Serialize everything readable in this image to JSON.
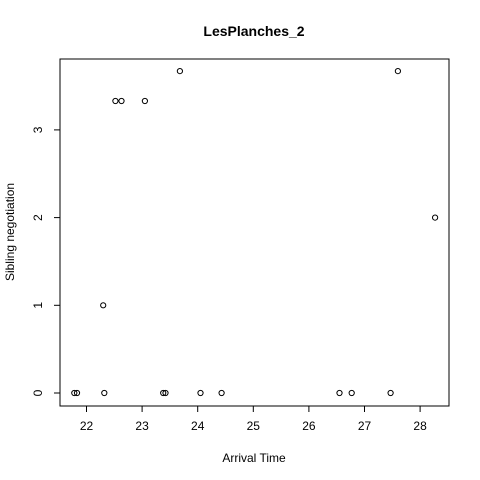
{
  "chart_data": {
    "type": "scatter",
    "title": "LesPlanches_2",
    "xlabel": "Arrival Time",
    "ylabel": "Sibling negotiation",
    "xlim": [
      21.5,
      28.5
    ],
    "ylim": [
      0,
      3.7
    ],
    "x_ticks": [
      "22",
      "23",
      "24",
      "25",
      "26",
      "27",
      "28"
    ],
    "y_ticks": [
      "0",
      "1",
      "2",
      "3"
    ],
    "grid": false,
    "points": [
      {
        "x": 21.78,
        "y": 0
      },
      {
        "x": 21.83,
        "y": 0
      },
      {
        "x": 22.3,
        "y": 1.0
      },
      {
        "x": 22.32,
        "y": 0
      },
      {
        "x": 22.52,
        "y": 3.33
      },
      {
        "x": 22.63,
        "y": 3.33
      },
      {
        "x": 23.05,
        "y": 3.33
      },
      {
        "x": 23.38,
        "y": 0
      },
      {
        "x": 23.42,
        "y": 0
      },
      {
        "x": 23.68,
        "y": 3.67
      },
      {
        "x": 24.05,
        "y": 0
      },
      {
        "x": 24.43,
        "y": 0
      },
      {
        "x": 26.55,
        "y": 0
      },
      {
        "x": 26.77,
        "y": 0
      },
      {
        "x": 27.47,
        "y": 0
      },
      {
        "x": 27.6,
        "y": 3.67
      },
      {
        "x": 28.27,
        "y": 2.0
      }
    ]
  }
}
